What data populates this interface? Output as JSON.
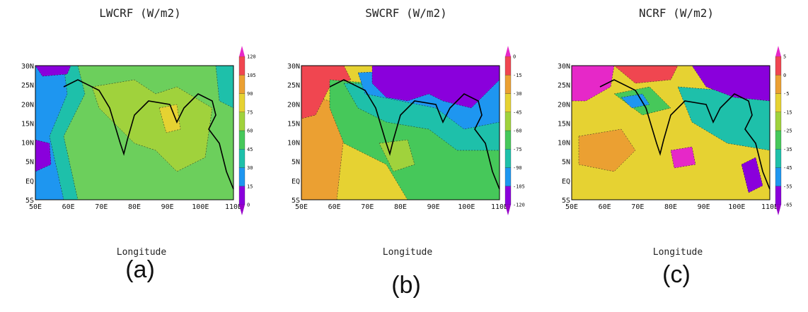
{
  "panels": [
    {
      "title": "LWCRF (W/m2)",
      "xlabel": "Longitude",
      "caption": "(a)",
      "yticks": [
        "30N",
        "25N",
        "20N",
        "15N",
        "10N",
        "5N",
        "EQ",
        "5S"
      ],
      "xticks": [
        "50E",
        "60E",
        "70E",
        "80E",
        "90E",
        "100E",
        "110E"
      ],
      "colorbar": {
        "levels": [
          0,
          15,
          30,
          45,
          60,
          75,
          90,
          105,
          120
        ],
        "colors": [
          "#8a00dc",
          "#1e96f0",
          "#1ec0aa",
          "#46c85a",
          "#a0d23c",
          "#e6d232",
          "#eba032",
          "#f04650"
        ],
        "extend_colors": [
          "#9600c8",
          "#e628c8"
        ]
      }
    },
    {
      "title": "SWCRF (W/m2)",
      "xlabel": "Longitude",
      "caption": "(b)",
      "yticks": [
        "30N",
        "25N",
        "20N",
        "15N",
        "10N",
        "5N",
        "EQ",
        "5S"
      ],
      "xticks": [
        "50E",
        "60E",
        "70E",
        "80E",
        "90E",
        "100E",
        "110E"
      ],
      "colorbar": {
        "levels": [
          -120,
          -105,
          -90,
          -75,
          -60,
          -45,
          -30,
          -15,
          0
        ],
        "colors": [
          "#8a00dc",
          "#1e96f0",
          "#1ec0aa",
          "#46c85a",
          "#a0d23c",
          "#e6d232",
          "#eba032",
          "#f04650"
        ],
        "extend_colors": [
          "#9600c8",
          "#e628c8"
        ]
      }
    },
    {
      "title": "NCRF (W/m2)",
      "xlabel": "Longitude",
      "caption": "(c)",
      "yticks": [
        "30N",
        "25N",
        "20N",
        "15N",
        "10N",
        "5N",
        "EQ",
        "5S"
      ],
      "xticks": [
        "50E",
        "60E",
        "70E",
        "80E",
        "90E",
        "100E",
        "110E"
      ],
      "colorbar": {
        "levels": [
          -65,
          -55,
          -45,
          -35,
          -25,
          -15,
          -5,
          0,
          5
        ],
        "colors": [
          "#8a00dc",
          "#1e96f0",
          "#1ec0aa",
          "#46c85a",
          "#a0d23c",
          "#e6d232",
          "#eba032",
          "#f04650"
        ],
        "extend_colors": [
          "#9600c8",
          "#e628c8"
        ]
      }
    }
  ]
}
